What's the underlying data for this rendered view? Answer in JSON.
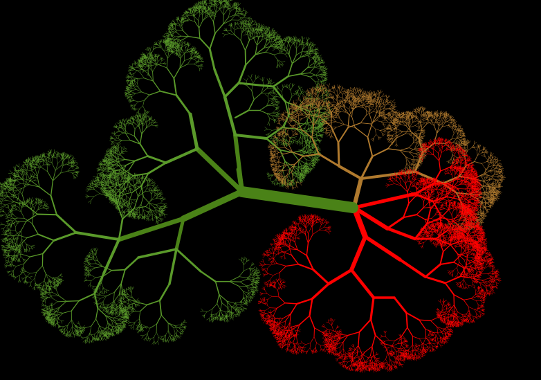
{
  "background_color": "#000000",
  "palette": {
    "trunk_green": "#4a8217",
    "leaf_green": "#5a9a2a",
    "tan": "#b07a2e",
    "red": "#ff0000"
  },
  "subject": "fractal-tree"
}
